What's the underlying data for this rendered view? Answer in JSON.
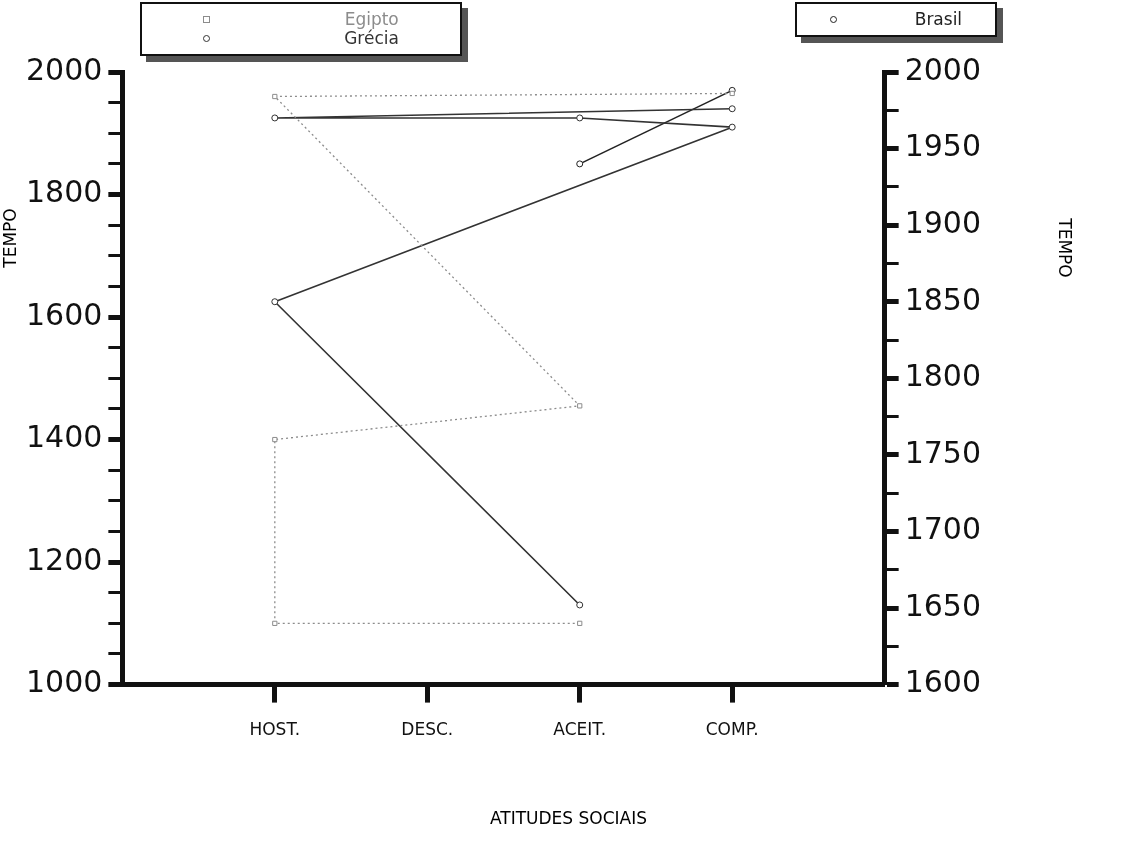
{
  "chart_data": {
    "type": "line",
    "xlabel": "ATITUDES SOCIAIS",
    "ylabel": "TEMPO",
    "y2label": "TEMPO",
    "categories": [
      "HOST.",
      "DESC.",
      "ACEIT.",
      "COMP."
    ],
    "series": [
      {
        "name": "Egipto",
        "color": "#8c8c8c",
        "line_style": "dotted",
        "marker": "square",
        "x": [
          "ACEIT.",
          "HOST.",
          "HOST.",
          "ACEIT.",
          "HOST.",
          "COMP."
        ],
        "values": [
          1100,
          1100,
          1400,
          1455,
          1960,
          1965
        ]
      },
      {
        "name": "Grécia",
        "color": "#333333",
        "line_style": "solid",
        "marker": "circle",
        "x": [
          "ACEIT.",
          "HOST.",
          "COMP.",
          "ACEIT.",
          "HOST.",
          "COMP."
        ],
        "values": [
          1130,
          1625,
          1910,
          1925,
          1925,
          1940
        ]
      },
      {
        "name": "Brasil",
        "color": "#222222",
        "line_style": "solid",
        "marker": "circle",
        "axis": "y2",
        "x": [
          "ACEIT.",
          "COMP."
        ],
        "values": [
          1940,
          1988
        ]
      }
    ],
    "ylim": [
      1000,
      2000
    ],
    "yticks": [
      1000,
      {
        "value": 1050,
        "label": null
      },
      {
        "value": 1100,
        "label": null
      },
      {
        "value": 1150,
        "label": null
      },
      1200,
      {
        "value": 1250,
        "label": null
      },
      {
        "value": 1300,
        "label": null
      },
      {
        "value": 1350,
        "label": null
      },
      1400,
      {
        "value": 1450,
        "label": null
      },
      {
        "value": 1500,
        "label": null
      },
      {
        "value": 1550,
        "label": null
      },
      1600,
      {
        "value": 1650,
        "label": null
      },
      {
        "value": 1700,
        "label": null
      },
      {
        "value": 1750,
        "label": null
      },
      1800,
      {
        "value": 1850,
        "label": null
      },
      {
        "value": 1900,
        "label": null
      },
      {
        "value": 1950,
        "label": null
      },
      2000
    ],
    "y2lim": [
      1600,
      2000
    ],
    "y2ticks": [
      1600,
      {
        "value": 1625,
        "label": null
      },
      1650,
      {
        "value": 1675,
        "label": null
      },
      1700,
      {
        "value": 1725,
        "label": null
      },
      1750,
      {
        "value": 1775,
        "label": null
      },
      1800,
      {
        "value": 1825,
        "label": null
      },
      1850,
      {
        "value": 1875,
        "label": null
      },
      1900,
      {
        "value": 1925,
        "label": null
      },
      1950,
      {
        "value": 1975,
        "label": null
      },
      2000
    ],
    "grid": false,
    "legend": "top"
  }
}
